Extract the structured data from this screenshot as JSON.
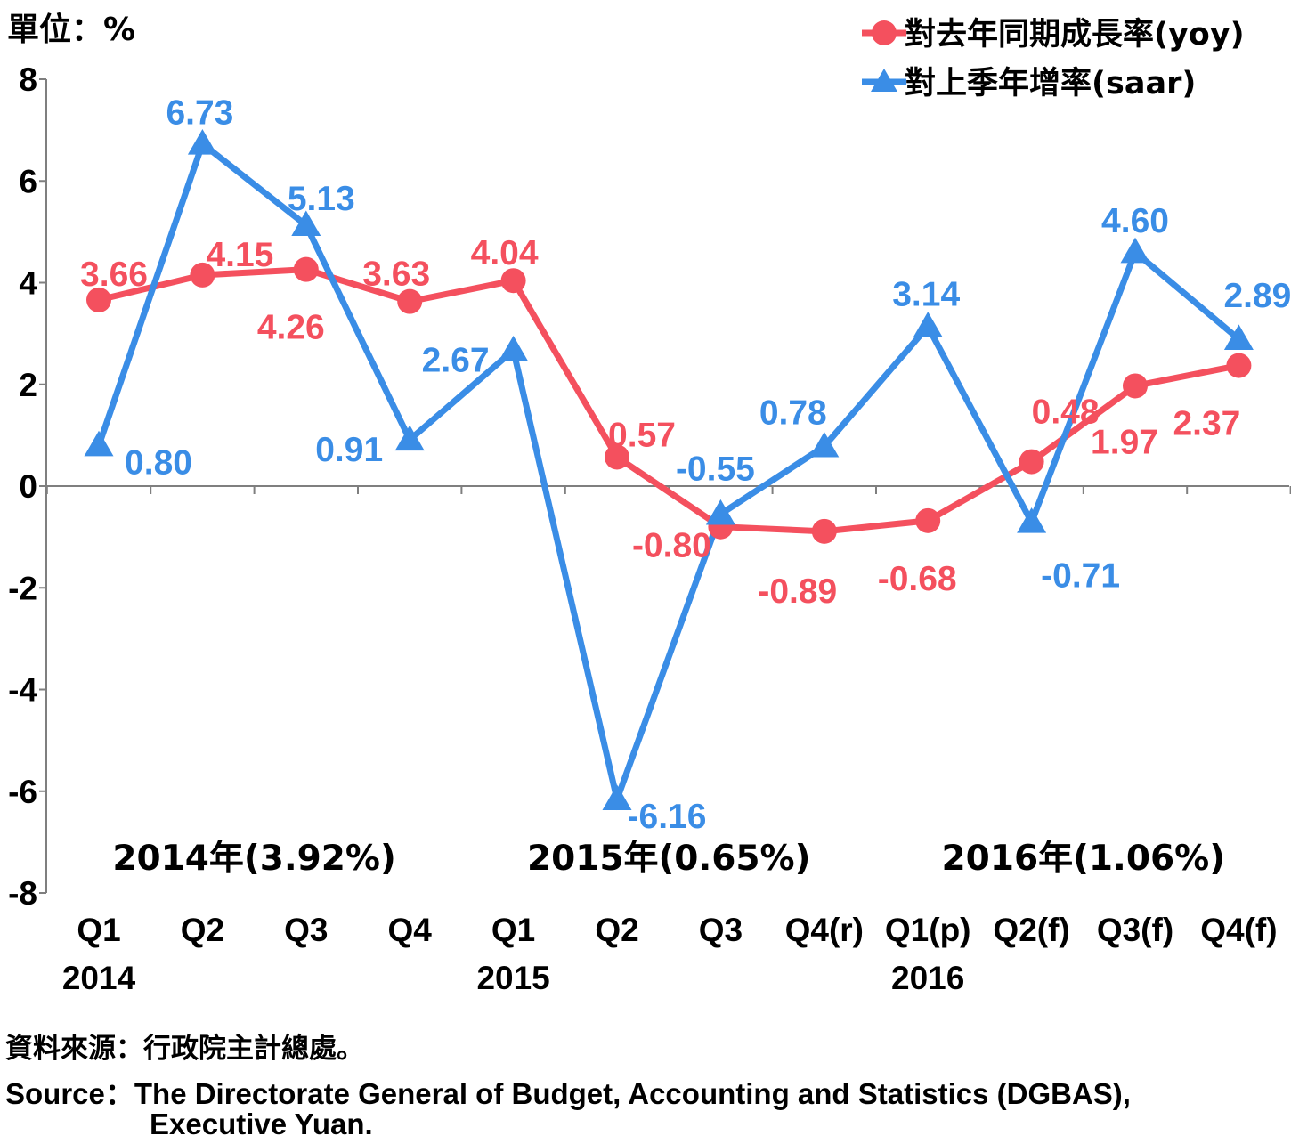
{
  "chart_data": {
    "type": "line",
    "unit_label": "單位：%",
    "categories": [
      "Q1",
      "Q2",
      "Q3",
      "Q4",
      "Q1",
      "Q2",
      "Q3",
      "Q4(r)",
      "Q1(p)",
      "Q2(f)",
      "Q3(f)",
      "Q4(f)"
    ],
    "year_labels": [
      {
        "index": 0,
        "label": "2014"
      },
      {
        "index": 4,
        "label": "2015"
      },
      {
        "index": 8,
        "label": "2016"
      }
    ],
    "ylim": [
      -8,
      8
    ],
    "yticks": [
      8,
      6,
      4,
      2,
      0,
      -2,
      -4,
      -6,
      -8
    ],
    "legend_position": "top-right",
    "series": [
      {
        "name": "對去年同期成長率(yoy)",
        "marker": "circle",
        "color": "#f4505e",
        "values": [
          3.66,
          4.15,
          4.26,
          3.63,
          4.04,
          0.57,
          -0.8,
          -0.89,
          -0.68,
          0.48,
          1.97,
          2.37
        ],
        "labels": [
          "3.66",
          "4.15",
          "4.26",
          "3.63",
          "4.04",
          "0.57",
          "-0.80",
          "-0.89",
          "-0.68",
          "0.48",
          "1.97",
          "2.37"
        ]
      },
      {
        "name": "對上季年增率(saar)",
        "marker": "triangle",
        "color": "#3a8de6",
        "values": [
          0.8,
          6.73,
          5.13,
          0.91,
          2.67,
          -6.16,
          -0.55,
          0.78,
          3.14,
          -0.71,
          4.6,
          2.89
        ],
        "labels": [
          "0.80",
          "6.73",
          "5.13",
          "0.91",
          "2.67",
          "-6.16",
          "-0.55",
          "0.78",
          "3.14",
          "-0.71",
          "4.60",
          "2.89"
        ]
      }
    ],
    "annotations": [
      {
        "text": "2014年(3.92%)",
        "center_index": 1.5
      },
      {
        "text": "2015年(0.65%)",
        "center_index": 5.5
      },
      {
        "text": "2016年(1.06%)",
        "center_index": 9.5
      }
    ]
  },
  "source": {
    "zh": "資料來源：行政院主計總處。",
    "en_line1": "Source：The Directorate General of Budget, Accounting and Statistics (DGBAS),",
    "en_line2": "Executive Yuan."
  }
}
